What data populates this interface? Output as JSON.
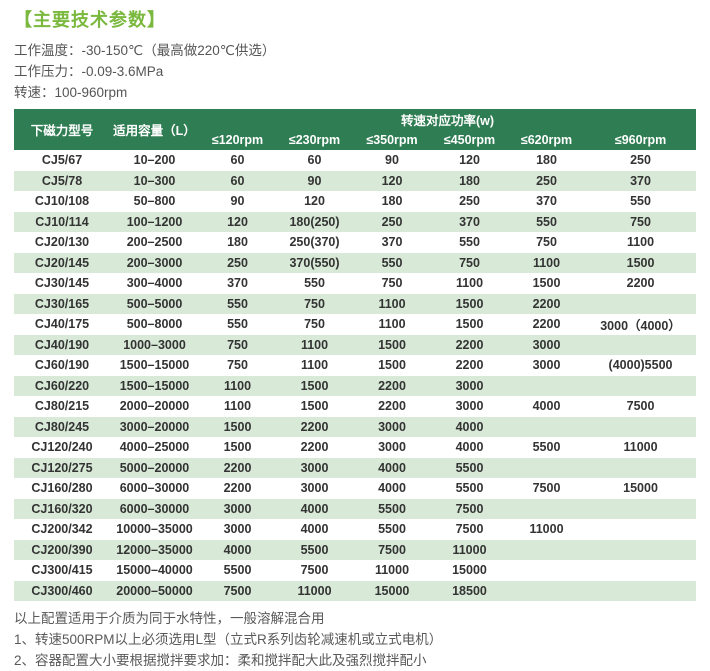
{
  "title": "【主要技术参数】",
  "specs": [
    "工作温度：-30-150℃（最高做220℃供选）",
    "工作压力：-0.09-3.6MPa",
    "转速：100-960rpm"
  ],
  "table": {
    "header": {
      "model": "下磁力型号",
      "capacity": "适用容量（L）",
      "power_group": "转速对应功率(w)",
      "rpm_cols": [
        "≤120rpm",
        "≤230rpm",
        "≤350rpm",
        "≤450rpm",
        "≤620rpm",
        "≤960rpm"
      ]
    },
    "rows": [
      [
        "CJ5/67",
        "10–200",
        "60",
        "60",
        "90",
        "120",
        "180",
        "250"
      ],
      [
        "CJ5/78",
        "10–300",
        "60",
        "90",
        "120",
        "180",
        "250",
        "370"
      ],
      [
        "CJ10/108",
        "50–800",
        "90",
        "120",
        "180",
        "250",
        "370",
        "550"
      ],
      [
        "CJ10/114",
        "100–1200",
        "120",
        "180(250)",
        "250",
        "370",
        "550",
        "750"
      ],
      [
        "CJ20/130",
        "200–2500",
        "180",
        "250(370)",
        "370",
        "550",
        "750",
        "1100"
      ],
      [
        "CJ20/145",
        "200–3000",
        "250",
        "370(550)",
        "550",
        "750",
        "1100",
        "1500"
      ],
      [
        "CJ30/145",
        "300–4000",
        "370",
        "550",
        "750",
        "1100",
        "1500",
        "2200"
      ],
      [
        "CJ30/165",
        "500–5000",
        "550",
        "750",
        "1100",
        "1500",
        "2200",
        ""
      ],
      [
        "CJ40/175",
        "500–8000",
        "550",
        "750",
        "1100",
        "1500",
        "2200",
        "3000（4000）"
      ],
      [
        "CJ40/190",
        "1000–3000",
        "750",
        "1100",
        "1500",
        "2200",
        "3000",
        ""
      ],
      [
        "CJ60/190",
        "1500–15000",
        "750",
        "1100",
        "1500",
        "2200",
        "3000",
        "(4000)5500"
      ],
      [
        "CJ60/220",
        "1500–15000",
        "1100",
        "1500",
        "2200",
        "3000",
        "",
        ""
      ],
      [
        "CJ80/215",
        "2000–20000",
        "1100",
        "1500",
        "2200",
        "3000",
        "4000",
        "7500"
      ],
      [
        "CJ80/245",
        "3000–20000",
        "1500",
        "2200",
        "3000",
        "4000",
        "",
        ""
      ],
      [
        "CJ120/240",
        "4000–25000",
        "1500",
        "2200",
        "3000",
        "4000",
        "5500",
        "11000"
      ],
      [
        "CJ120/275",
        "5000–20000",
        "2200",
        "3000",
        "4000",
        "5500",
        "",
        ""
      ],
      [
        "CJ160/280",
        "6000–30000",
        "2200",
        "3000",
        "4000",
        "5500",
        "7500",
        "15000"
      ],
      [
        "CJ160/320",
        "6000–30000",
        "3000",
        "4000",
        "5500",
        "7500",
        "",
        ""
      ],
      [
        "CJ200/342",
        "10000–35000",
        "3000",
        "4000",
        "5500",
        "7500",
        "11000",
        ""
      ],
      [
        "CJ200/390",
        "12000–35000",
        "4000",
        "5500",
        "7500",
        "11000",
        "",
        ""
      ],
      [
        "CJ300/415",
        "15000–40000",
        "5500",
        "7500",
        "11000",
        "15000",
        "",
        ""
      ],
      [
        "CJ300/460",
        "20000–50000",
        "7500",
        "11000",
        "15000",
        "18500",
        "",
        ""
      ]
    ]
  },
  "notes": [
    "以上配置适用于介质为同于水特性，一般溶解混合用",
    "1、转速500RPM以上必须选用L型（立式R系列齿轮减速机或立式电机）",
    "2、容器配置大小要根据搅拌要求加：柔和搅拌配大此及强烈搅拌配小"
  ],
  "colors": {
    "accent_green": "#7ab83e",
    "table_header_green": "#2f7d52",
    "row_alt_green": "#d8ead7"
  }
}
